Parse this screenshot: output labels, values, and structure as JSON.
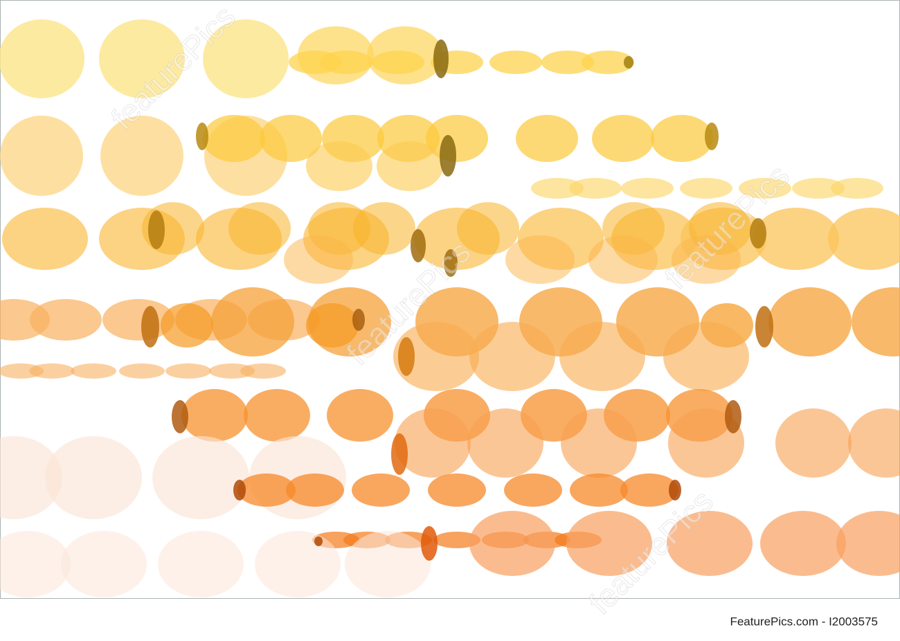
{
  "watermark": "featurePics",
  "footer": {
    "text": "FeaturePics.com - I2003575"
  }
}
